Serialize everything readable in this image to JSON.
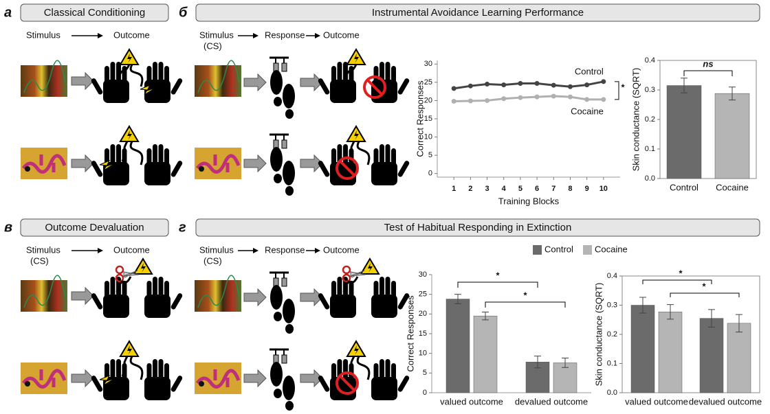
{
  "panels": [
    {
      "label": "а",
      "title": "Classical Conditioning",
      "flow": [
        "Stimulus",
        "Outcome"
      ]
    },
    {
      "label": "б",
      "title": "Instrumental Avoidance Learning Performance",
      "flow": [
        "Stimulus",
        "Response",
        "Outcome"
      ],
      "cs": "(CS)"
    },
    {
      "label": "в",
      "title": "Outcome Devaluation",
      "flow": [
        "Stimulus",
        "Outcome"
      ],
      "cs": "(CS)"
    },
    {
      "label": "г",
      "title": "Test of Habitual Responding in Extinction",
      "flow": [
        "Stimulus",
        "Response",
        "Outcome"
      ],
      "cs": "(CS)"
    }
  ],
  "chart_data": [
    {
      "type": "line",
      "xlabel": "Training Blocks",
      "ylabel": "Correct Responses",
      "x": [
        1,
        2,
        3,
        4,
        5,
        6,
        7,
        8,
        9,
        10
      ],
      "series": [
        {
          "name": "Control",
          "color": "#444444",
          "values": [
            23.3,
            24,
            24.5,
            24.3,
            24.7,
            24.7,
            24.2,
            23.8,
            24.3,
            25.2
          ]
        },
        {
          "name": "Cocaine",
          "color": "#b0b0b0",
          "values": [
            19.8,
            19.9,
            20,
            20.5,
            20.8,
            21,
            21.2,
            21,
            20.3,
            20.3
          ]
        }
      ],
      "xlim": [
        0,
        11
      ],
      "xticks": [
        1,
        2,
        3,
        4,
        5,
        6,
        7,
        8,
        9,
        10
      ],
      "ylim": [
        -1,
        31
      ],
      "yticks": [
        0,
        5,
        10,
        15,
        20,
        25,
        30
      ],
      "annotations": [
        "*"
      ]
    },
    {
      "type": "bar",
      "ylabel": "Skin conductance (SQRT)",
      "categories": [
        "Control",
        "Cocaine"
      ],
      "series": [
        {
          "color": "#6b6b6b",
          "values": [
            0.315,
            null
          ],
          "errors": [
            0.025,
            null
          ]
        },
        {
          "color": "#b5b5b5",
          "values": [
            null,
            0.288
          ],
          "errors": [
            null,
            0.022
          ]
        }
      ],
      "ylim": [
        0,
        0.4
      ],
      "yticks": [
        {
          "value": 0,
          "label": "0.0"
        },
        0.1,
        0.2,
        0.3,
        0.4
      ],
      "annotations": [
        "ns"
      ]
    },
    {
      "type": "bar",
      "ylabel": "Correct Responses",
      "categories": [
        "valued outcome",
        "devalued outcome"
      ],
      "series": [
        {
          "name": "Control",
          "color": "#6b6b6b",
          "values": [
            23.8,
            7.8
          ],
          "errors": [
            1.2,
            1.5
          ]
        },
        {
          "name": "Cocaine",
          "color": "#b5b5b5",
          "values": [
            19.5,
            7.6
          ],
          "errors": [
            1.0,
            1.2
          ]
        }
      ],
      "ylim": [
        0,
        30
      ],
      "yticks": [
        0,
        5,
        10,
        15,
        20,
        25,
        30
      ],
      "annotations": [
        "*",
        "*"
      ]
    },
    {
      "type": "bar",
      "ylabel": "Skin conductance (SQRT)",
      "categories": [
        "valued outcome",
        "devalued outcome"
      ],
      "series": [
        {
          "color": "#6b6b6b",
          "values": [
            0.3,
            0.255
          ],
          "errors": [
            0.027,
            0.03
          ]
        },
        {
          "color": "#b5b5b5",
          "values": [
            0.277,
            0.238
          ],
          "errors": [
            0.025,
            0.03
          ]
        }
      ],
      "ylim": [
        0,
        0.4
      ],
      "yticks": [
        {
          "value": 0,
          "label": "0.0"
        },
        0.1,
        0.2,
        0.3,
        0.4
      ],
      "annotations": [
        "*",
        "*"
      ]
    }
  ]
}
